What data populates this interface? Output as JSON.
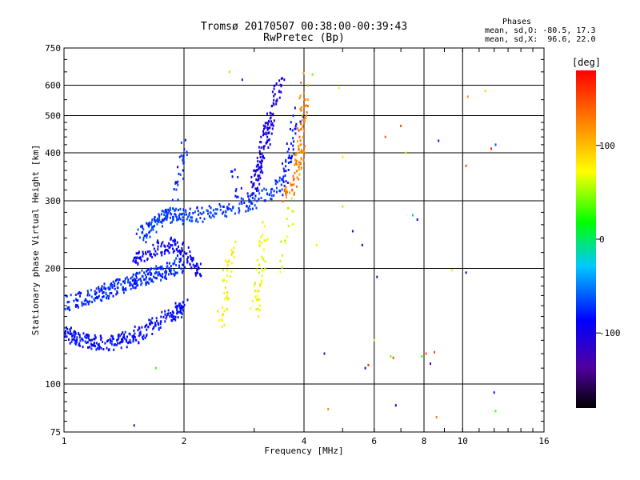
{
  "header": {
    "title_line1": "Tromsø 20170507 00:38:00-00:39:43",
    "title_line2": "RwPretec (Bp)"
  },
  "stats": {
    "heading": "Phases",
    "line_o": "mean, sd,O: -80.5, 17.3",
    "line_x": "mean, sd,X:  96.6, 22.0"
  },
  "chart_data": {
    "type": "scatter",
    "xlabel": "Frequency [MHz]",
    "ylabel": "Stationary phase Virtual Height [km]",
    "xscale": "log",
    "yscale": "log",
    "xlim": [
      1,
      16
    ],
    "ylim": [
      75,
      750
    ],
    "xticks": [
      {
        "value": 1,
        "label": "1"
      },
      {
        "value": 2,
        "label": "2"
      },
      {
        "value": 4,
        "label": "4"
      },
      {
        "value": 6,
        "label": "6"
      },
      {
        "value": 8,
        "label": "8"
      },
      {
        "value": 10,
        "label": "10"
      },
      {
        "value": 16,
        "label": "16"
      }
    ],
    "xgrid": [
      2,
      4,
      6,
      8,
      10
    ],
    "yticks": [
      {
        "value": 75,
        "label": "75"
      },
      {
        "value": 100,
        "label": "100"
      },
      {
        "value": 200,
        "label": "200"
      },
      {
        "value": 300,
        "label": "300"
      },
      {
        "value": 400,
        "label": "400"
      },
      {
        "value": 500,
        "label": "500"
      },
      {
        "value": 600,
        "label": "600"
      },
      {
        "value": 750,
        "label": "750"
      }
    ],
    "ygrid": [
      100,
      200,
      300,
      400,
      500,
      600
    ],
    "grid": true,
    "colorbar": {
      "label": "[deg]",
      "range": [
        -180,
        180
      ],
      "ticks": [
        {
          "value": 100,
          "label": "100"
        },
        {
          "value": 0,
          "label": "0"
        },
        {
          "value": -100,
          "label": "-100"
        }
      ]
    },
    "traces": [
      {
        "phase": -85,
        "spread": 12,
        "points": [
          [
            1.0,
            135,
            40
          ],
          [
            1.1,
            131,
            40
          ],
          [
            1.2,
            128,
            40
          ],
          [
            1.35,
            128,
            40
          ],
          [
            1.5,
            133,
            40
          ],
          [
            1.7,
            143,
            40
          ],
          [
            1.9,
            153,
            40
          ],
          [
            2.0,
            160,
            30
          ]
        ]
      },
      {
        "phase": -75,
        "spread": 12,
        "points": [
          [
            1.0,
            162,
            50
          ],
          [
            1.2,
            170,
            60
          ],
          [
            1.4,
            180,
            60
          ],
          [
            1.6,
            190,
            60
          ],
          [
            1.8,
            198,
            50
          ],
          [
            2.0,
            205,
            30
          ]
        ]
      },
      {
        "phase": -70,
        "spread": 10,
        "points": [
          [
            1.55,
            240,
            40
          ],
          [
            1.7,
            265,
            45
          ],
          [
            1.85,
            275,
            40
          ],
          [
            2.0,
            272,
            25
          ],
          [
            2.2,
            276,
            25
          ],
          [
            2.5,
            283,
            25
          ],
          [
            2.8,
            293,
            25
          ],
          [
            3.2,
            310,
            25
          ],
          [
            3.5,
            330,
            20
          ]
        ]
      },
      {
        "phase": -92,
        "spread": 10,
        "points": [
          [
            1.5,
            210,
            40
          ],
          [
            1.7,
            225,
            40
          ],
          [
            1.9,
            230,
            40
          ],
          [
            2.1,
            210,
            30
          ],
          [
            2.2,
            190,
            25
          ]
        ]
      },
      {
        "phase": -75,
        "spread": 10,
        "points": [
          [
            1.9,
            300,
            10
          ],
          [
            1.95,
            350,
            10
          ],
          [
            2.0,
            400,
            10
          ],
          [
            2.0,
            450,
            5
          ]
        ]
      },
      {
        "phase": -80,
        "spread": 6,
        "points": [
          [
            2.65,
            375,
            5
          ],
          [
            2.75,
            320,
            6
          ],
          [
            2.85,
            300,
            8
          ],
          [
            2.95,
            300,
            8
          ]
        ]
      },
      {
        "phase": -98,
        "spread": 8,
        "points": [
          [
            3.0,
            320,
            40
          ],
          [
            3.1,
            380,
            50
          ],
          [
            3.25,
            460,
            40
          ],
          [
            3.4,
            560,
            25
          ],
          [
            3.5,
            640,
            10
          ]
        ]
      },
      {
        "phase": -80,
        "spread": 8,
        "points": [
          [
            3.5,
            320,
            15
          ],
          [
            3.6,
            355,
            15
          ],
          [
            3.7,
            400,
            15
          ],
          [
            3.8,
            460,
            10
          ],
          [
            3.9,
            520,
            5
          ]
        ]
      },
      {
        "phase": 75,
        "spread": 15,
        "points": [
          [
            2.45,
            140,
            8
          ],
          [
            2.5,
            160,
            10
          ],
          [
            2.55,
            180,
            10
          ],
          [
            2.6,
            205,
            12
          ],
          [
            2.7,
            230,
            10
          ]
        ]
      },
      {
        "phase": 70,
        "spread": 15,
        "points": [
          [
            3.0,
            150,
            12
          ],
          [
            3.05,
            170,
            12
          ],
          [
            3.1,
            195,
            12
          ],
          [
            3.15,
            225,
            10
          ],
          [
            3.2,
            255,
            10
          ]
        ]
      },
      {
        "phase": 62,
        "spread": 10,
        "points": [
          [
            3.45,
            200,
            5
          ],
          [
            3.6,
            250,
            10
          ],
          [
            3.75,
            300,
            5
          ]
        ]
      },
      {
        "phase": 125,
        "spread": 15,
        "points": [
          [
            3.6,
            310,
            20
          ],
          [
            3.8,
            340,
            25
          ],
          [
            3.9,
            390,
            25
          ],
          [
            3.95,
            440,
            15
          ],
          [
            4.0,
            520,
            20
          ],
          [
            4.0,
            620,
            10
          ]
        ]
      }
    ],
    "scattered_points": [
      {
        "f": 5.8,
        "h": 112,
        "phase": 160
      },
      {
        "f": 5.7,
        "h": 110,
        "phase": -100
      },
      {
        "f": 6.6,
        "h": 118,
        "phase": 40
      },
      {
        "f": 6.7,
        "h": 117,
        "phase": 150
      },
      {
        "f": 7.9,
        "h": 118,
        "phase": 30
      },
      {
        "f": 8.1,
        "h": 120,
        "phase": 140
      },
      {
        "f": 8.3,
        "h": 113,
        "phase": -140
      },
      {
        "f": 8.5,
        "h": 121,
        "phase": 150
      },
      {
        "f": 6.4,
        "h": 440,
        "phase": 140
      },
      {
        "f": 7.0,
        "h": 470,
        "phase": 150
      },
      {
        "f": 7.2,
        "h": 400,
        "phase": 60
      },
      {
        "f": 8.7,
        "h": 430,
        "phase": -80
      },
      {
        "f": 10.3,
        "h": 560,
        "phase": 120
      },
      {
        "f": 10.2,
        "h": 370,
        "phase": 150
      },
      {
        "f": 10.2,
        "h": 195,
        "phase": -110
      },
      {
        "f": 11.4,
        "h": 580,
        "phase": 90
      },
      {
        "f": 11.8,
        "h": 410,
        "phase": 170
      },
      {
        "f": 12.1,
        "h": 420,
        "phase": -60
      },
      {
        "f": 12.0,
        "h": 95,
        "phase": -80
      },
      {
        "f": 12.1,
        "h": 85,
        "phase": 30
      },
      {
        "f": 8.6,
        "h": 82,
        "phase": 130
      },
      {
        "f": 6.8,
        "h": 88,
        "phase": -100
      },
      {
        "f": 4.5,
        "h": 120,
        "phase": -120
      },
      {
        "f": 4.6,
        "h": 86,
        "phase": 120
      },
      {
        "f": 4.9,
        "h": 590,
        "phase": 80
      },
      {
        "f": 5.0,
        "h": 390,
        "phase": 80
      },
      {
        "f": 5.0,
        "h": 290,
        "phase": 90
      },
      {
        "f": 7.5,
        "h": 275,
        "phase": -20
      },
      {
        "f": 7.7,
        "h": 268,
        "phase": -100
      },
      {
        "f": 9.4,
        "h": 198,
        "phase": 80
      },
      {
        "f": 2.6,
        "h": 650,
        "phase": 50
      },
      {
        "f": 2.8,
        "h": 620,
        "phase": -80
      },
      {
        "f": 1.7,
        "h": 110,
        "phase": 30
      },
      {
        "f": 1.5,
        "h": 78,
        "phase": -120
      },
      {
        "f": 5.3,
        "h": 250,
        "phase": -130
      },
      {
        "f": 5.6,
        "h": 230,
        "phase": -100
      },
      {
        "f": 4.2,
        "h": 640,
        "phase": 40
      },
      {
        "f": 4.3,
        "h": 230,
        "phase": 80
      },
      {
        "f": 6.1,
        "h": 190,
        "phase": -120
      },
      {
        "f": 6.0,
        "h": 130,
        "phase": 90
      }
    ]
  }
}
